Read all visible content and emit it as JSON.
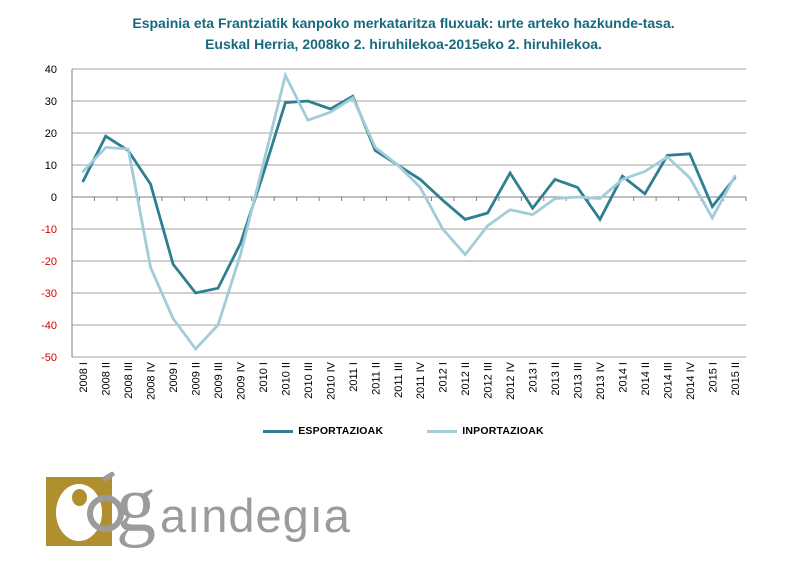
{
  "title": {
    "line1": "Espainia eta Frantziatik kanpoko merkataritza fluxuak: urte arteko hazkunde-tasa.",
    "line2": "Euskal Herria, 2008ko 2. hiruhilekoa-2015eko 2. hiruhilekoa.",
    "color": "#17697E"
  },
  "legend": {
    "items": [
      {
        "label": "ESPORTAZIOAK",
        "color": "#2E7F90"
      },
      {
        "label": "INPORTAZIOAK",
        "color": "#A3CCD9"
      }
    ]
  },
  "logo": {
    "big_letter": "g",
    "rest_text": "aındegıa",
    "gold": "#B08F2F",
    "gray": "#9B9B9B"
  },
  "chart_data": {
    "type": "line",
    "title": "Espainia eta Frantziatik kanpoko merkataritza fluxuak: urte arteko hazkunde-tasa. Euskal Herria, 2008ko 2. hiruhilekoa-2015eko 2. hiruhilekoa.",
    "categories": [
      "2008 I",
      "2008 II",
      "2008 III",
      "2008 IV",
      "2009 I",
      "2009 II",
      "2009 III",
      "2009 IV",
      "2010 I",
      "2010 II",
      "2010 III",
      "2010 IV",
      "2011 I",
      "2011 II",
      "2011 III",
      "2011 IV",
      "2012 I",
      "2012 II",
      "2012 III",
      "2012 IV",
      "2013 I",
      "2013 II",
      "2013 III",
      "2013 IV",
      "2014 I",
      "2014 II",
      "2014 III",
      "2014 IV",
      "2015 I",
      "2015 II"
    ],
    "series": [
      {
        "name": "ESPORTAZIOAK",
        "color": "#2E7F90",
        "values": [
          5,
          19,
          14.5,
          4,
          -21,
          -30,
          -28.5,
          -14.5,
          7,
          29.5,
          30,
          27.5,
          31.5,
          14.5,
          10,
          5.5,
          -1,
          -7,
          -5,
          7.5,
          -3.5,
          5.5,
          3,
          -7,
          6.5,
          1,
          13,
          13.5,
          -3,
          6
        ]
      },
      {
        "name": "INPORTAZIOAK",
        "color": "#A3CCD9",
        "values": [
          8,
          15.5,
          15,
          -22,
          -38,
          -47.5,
          -40,
          -18,
          10,
          38,
          24,
          26.5,
          31,
          15.5,
          10,
          3,
          -10,
          -18,
          -9,
          -4,
          -5.5,
          -0.5,
          0,
          -0.5,
          5.5,
          8,
          12.5,
          6,
          -6.5,
          6.5
        ]
      }
    ],
    "ylim": [
      -50,
      40
    ],
    "yticks": [
      40,
      30,
      20,
      10,
      0,
      -10,
      -20,
      -30,
      -40,
      -50
    ],
    "grid": true,
    "legend_position": "bottom",
    "xlabel": "",
    "ylabel": "",
    "tick_color_positive": "#000000",
    "tick_color_negative": "#D00000",
    "grid_color": "#A0A0A0",
    "axis_color": "#808080"
  }
}
